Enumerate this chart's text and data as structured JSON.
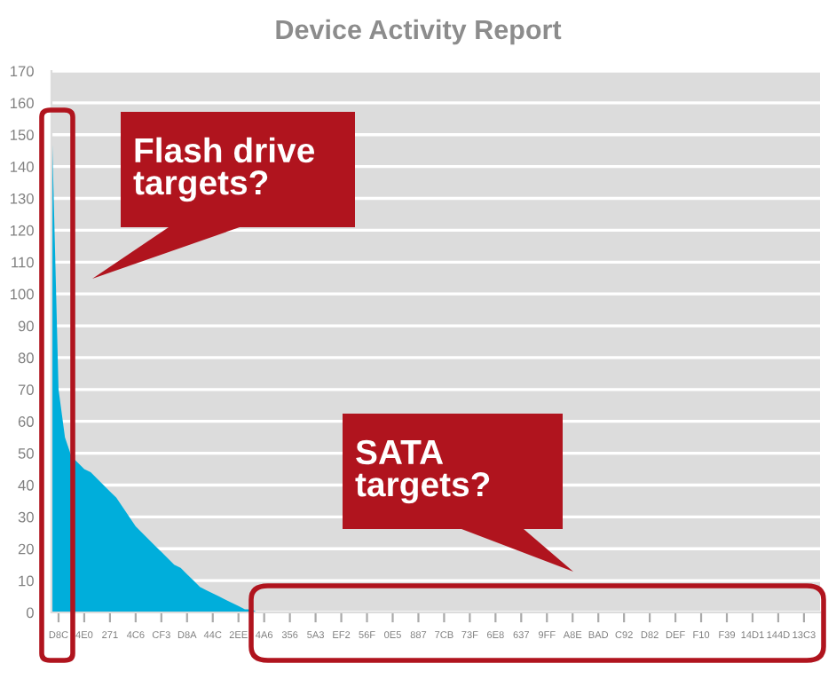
{
  "chart_data": {
    "type": "area",
    "title": "Device Activity Report",
    "categories": [
      null,
      "D8C",
      null,
      null,
      null,
      "4E0",
      null,
      null,
      null,
      "271",
      null,
      null,
      null,
      "4C6",
      null,
      null,
      null,
      "CF3",
      null,
      null,
      null,
      "D8A",
      null,
      null,
      null,
      "44C",
      null,
      null,
      null,
      "2EE",
      null,
      null,
      null,
      "4A6",
      null,
      null,
      null,
      "356",
      null,
      null,
      null,
      "5A3",
      null,
      null,
      null,
      "EF2",
      null,
      null,
      null,
      "56F",
      null,
      null,
      null,
      "0E5",
      null,
      null,
      null,
      "887",
      null,
      null,
      null,
      "7CB",
      null,
      null,
      null,
      "73F",
      null,
      null,
      null,
      "6E8",
      null,
      null,
      null,
      "637",
      null,
      null,
      null,
      "9FF",
      null,
      null,
      null,
      "A8E",
      null,
      null,
      null,
      "BAD",
      null,
      null,
      null,
      "C92",
      null,
      null,
      null,
      "D82",
      null,
      null,
      null,
      "DEF",
      null,
      null,
      null,
      "F10",
      null,
      null,
      null,
      "F39",
      null,
      null,
      null,
      "14D1",
      null,
      null,
      null,
      "144D",
      null,
      null,
      null,
      "13C3",
      null,
      null,
      null
    ],
    "series": [
      {
        "color": "#00aedb",
        "values": [
          150,
          70,
          55,
          49,
          47,
          45,
          44,
          42,
          40,
          38,
          36,
          33,
          30,
          27,
          25,
          23,
          21,
          19,
          17,
          15,
          14,
          12,
          10,
          8,
          7,
          6,
          5,
          4,
          3,
          2,
          1,
          1,
          0,
          null,
          null,
          null,
          null,
          null,
          null,
          null,
          null,
          null,
          null,
          null,
          null,
          null,
          null,
          null,
          null,
          null,
          null,
          null,
          null,
          null,
          null,
          null,
          null,
          null,
          null,
          null,
          null,
          null,
          null,
          null,
          null,
          null,
          null,
          null,
          null,
          null,
          null,
          null,
          null,
          null,
          null,
          null,
          null,
          null,
          null,
          null,
          null,
          null,
          null,
          null,
          null,
          null,
          null,
          null,
          null,
          null,
          null,
          null,
          null,
          null,
          null,
          null,
          null,
          null,
          null,
          null,
          null,
          null,
          null,
          null,
          null,
          null,
          null,
          null,
          null,
          null,
          null,
          null,
          null,
          null,
          null,
          null,
          null,
          null,
          null,
          null,
          null
        ]
      }
    ],
    "ylim": [
      0,
      170
    ],
    "yticks": [
      0,
      10,
      20,
      30,
      40,
      50,
      60,
      70,
      80,
      90,
      100,
      110,
      120,
      130,
      140,
      150,
      160,
      170
    ],
    "grid": "y",
    "annotations": [
      "Flash drive targets?",
      "SATA targets?"
    ]
  }
}
